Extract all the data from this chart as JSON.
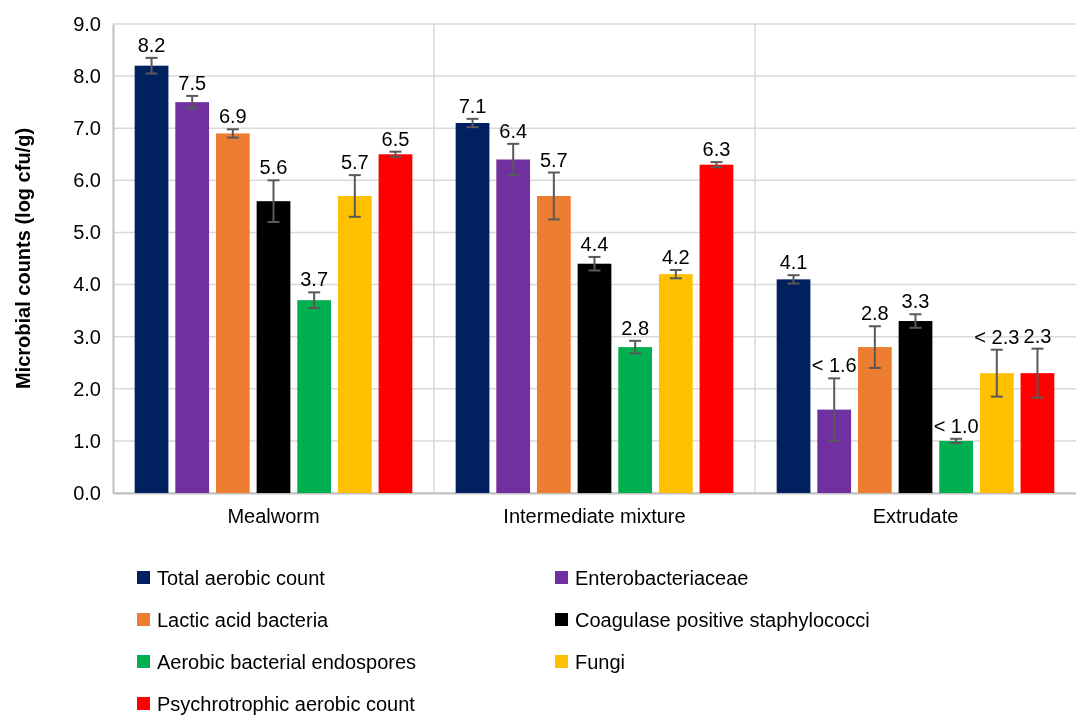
{
  "chart_data": {
    "type": "bar",
    "ylabel": "Microbial counts (log cfu/g)",
    "categories": [
      "Mealworm",
      "Intermediate mixture",
      "Extrudate"
    ],
    "ylim": [
      0,
      9
    ],
    "yticks": [
      {
        "value": 0,
        "label": "0.0"
      },
      {
        "value": 1,
        "label": "1.0"
      },
      {
        "value": 2,
        "label": "2.0"
      },
      {
        "value": 3,
        "label": "3.0"
      },
      {
        "value": 4,
        "label": "4.0"
      },
      {
        "value": 5,
        "label": "5.0"
      },
      {
        "value": 6,
        "label": "6.0"
      },
      {
        "value": 7,
        "label": "7.0"
      },
      {
        "value": 8,
        "label": "8.0"
      },
      {
        "value": 9,
        "label": "9.0"
      }
    ],
    "grid": true,
    "legend": "bottom",
    "series": [
      {
        "name": "Total aerobic count",
        "color": "#002060",
        "values": [
          8.2,
          7.1,
          4.1
        ],
        "errors": [
          0.15,
          0.08,
          0.08
        ],
        "value_labels": [
          "8.2",
          "7.1",
          "4.1"
        ]
      },
      {
        "name": "Enterobacteriaceae",
        "color": "#7030a0",
        "values": [
          7.5,
          6.4,
          1.6
        ],
        "errors": [
          0.12,
          0.3,
          0.6
        ],
        "value_labels": [
          "7.5",
          "6.4",
          "< 1.6"
        ]
      },
      {
        "name": "Lactic acid bacteria",
        "color": "#ed7d31",
        "values": [
          6.9,
          5.7,
          2.8
        ],
        "errors": [
          0.08,
          0.45,
          0.4
        ],
        "value_labels": [
          "6.9",
          "5.7",
          "2.8"
        ]
      },
      {
        "name": "Coagulase positive staphylococci",
        "color": "#000000",
        "values": [
          5.6,
          4.4,
          3.3
        ],
        "errors": [
          0.4,
          0.13,
          0.13
        ],
        "value_labels": [
          "5.6",
          "4.4",
          "3.3"
        ]
      },
      {
        "name": "Aerobic bacterial endospores",
        "color": "#00b050",
        "values": [
          3.7,
          2.8,
          1.0
        ],
        "errors": [
          0.15,
          0.12,
          0.04
        ],
        "value_labels": [
          "3.7",
          "2.8",
          "< 1.0"
        ]
      },
      {
        "name": "Fungi",
        "color": "#ffc000",
        "values": [
          5.7,
          4.2,
          2.3
        ],
        "errors": [
          0.4,
          0.08,
          0.45
        ],
        "value_labels": [
          "5.7",
          "4.2",
          "< 2.3"
        ]
      },
      {
        "name": "Psychrotrophic aerobic count",
        "color": "#ff0000",
        "values": [
          6.5,
          6.3,
          2.3
        ],
        "errors": [
          0.05,
          0.05,
          0.47
        ],
        "value_labels": [
          "6.5",
          "6.3",
          "2.3"
        ]
      }
    ]
  }
}
